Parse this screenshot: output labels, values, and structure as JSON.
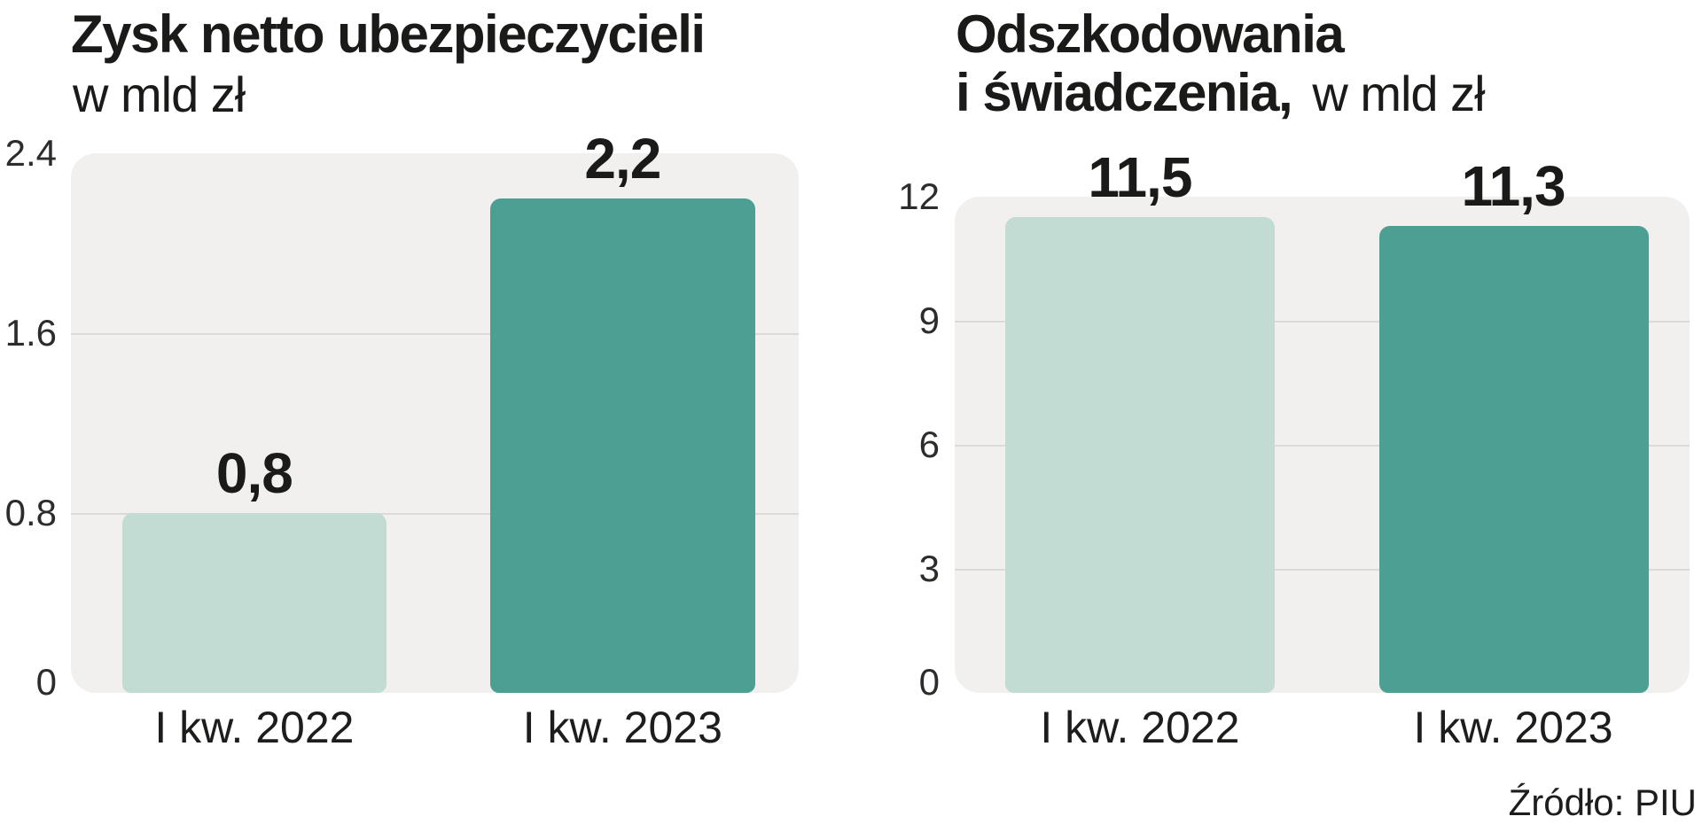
{
  "page": {
    "background": "#ffffff",
    "source_label": "Źródło: PIU"
  },
  "colors": {
    "bar_2022": "#c2dbd3",
    "bar_2023": "#4ba093",
    "plot_background": "#f1f0ee",
    "gridline": "#dbdad8",
    "text": "#1a1a18"
  },
  "chart_data": [
    {
      "type": "bar",
      "title": "Zysk netto ubezpieczycieli",
      "title_lines": [
        "Zysk netto ubezpieczycieli"
      ],
      "subtitle": "w mld zł",
      "categories": [
        "I kw. 2022",
        "I kw. 2023"
      ],
      "values": [
        0.8,
        2.2
      ],
      "value_labels": [
        "0,8",
        "2,2"
      ],
      "yticks": [
        "2.4",
        "1.6",
        "0.8",
        "0"
      ],
      "ylim": [
        0,
        2.4
      ],
      "grid": true,
      "legend": "none",
      "bar_colors": [
        "#c2dbd3",
        "#4ba093"
      ]
    },
    {
      "type": "bar",
      "title": "Odszkodowania i świadczenia,",
      "title_lines": [
        "Odszkodowania",
        "i świadczenia,"
      ],
      "subtitle": "w mld zł",
      "categories": [
        "I kw. 2022",
        "I kw. 2023"
      ],
      "values": [
        11.5,
        11.3
      ],
      "value_labels": [
        "11,5",
        "11,3"
      ],
      "yticks": [
        "12",
        "9",
        "6",
        "3",
        "0"
      ],
      "ylim": [
        0,
        12
      ],
      "grid": true,
      "legend": "none",
      "bar_colors": [
        "#c2dbd3",
        "#4ba093"
      ]
    }
  ]
}
